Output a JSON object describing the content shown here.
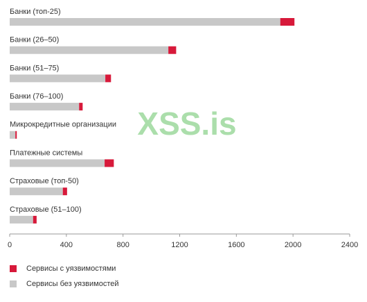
{
  "chart_data": {
    "type": "stacked-bar-horizontal",
    "watermark": "XSS.is",
    "categories": [
      "Банки (топ-25)",
      "Банки (26–50)",
      "Банки (51–75)",
      "Банки (76–100)",
      "Микрокредитные организации",
      "Платежные системы",
      "Страховые (топ-50)",
      "Страховые (51–100)"
    ],
    "series": [
      {
        "name": "Сервисы с уязвимостями",
        "color": "#d7193a",
        "values": [
          100,
          55,
          40,
          25,
          10,
          65,
          30,
          25
        ]
      },
      {
        "name": "Сервисы без уязвимостей",
        "color": "#c8c8c8",
        "values": [
          1910,
          1120,
          675,
          490,
          40,
          670,
          375,
          165
        ]
      }
    ],
    "stack_order": [
      1,
      0
    ],
    "xlim": [
      0,
      2400
    ],
    "xticks": [
      0,
      400,
      800,
      1200,
      1600,
      2000,
      2400
    ]
  }
}
